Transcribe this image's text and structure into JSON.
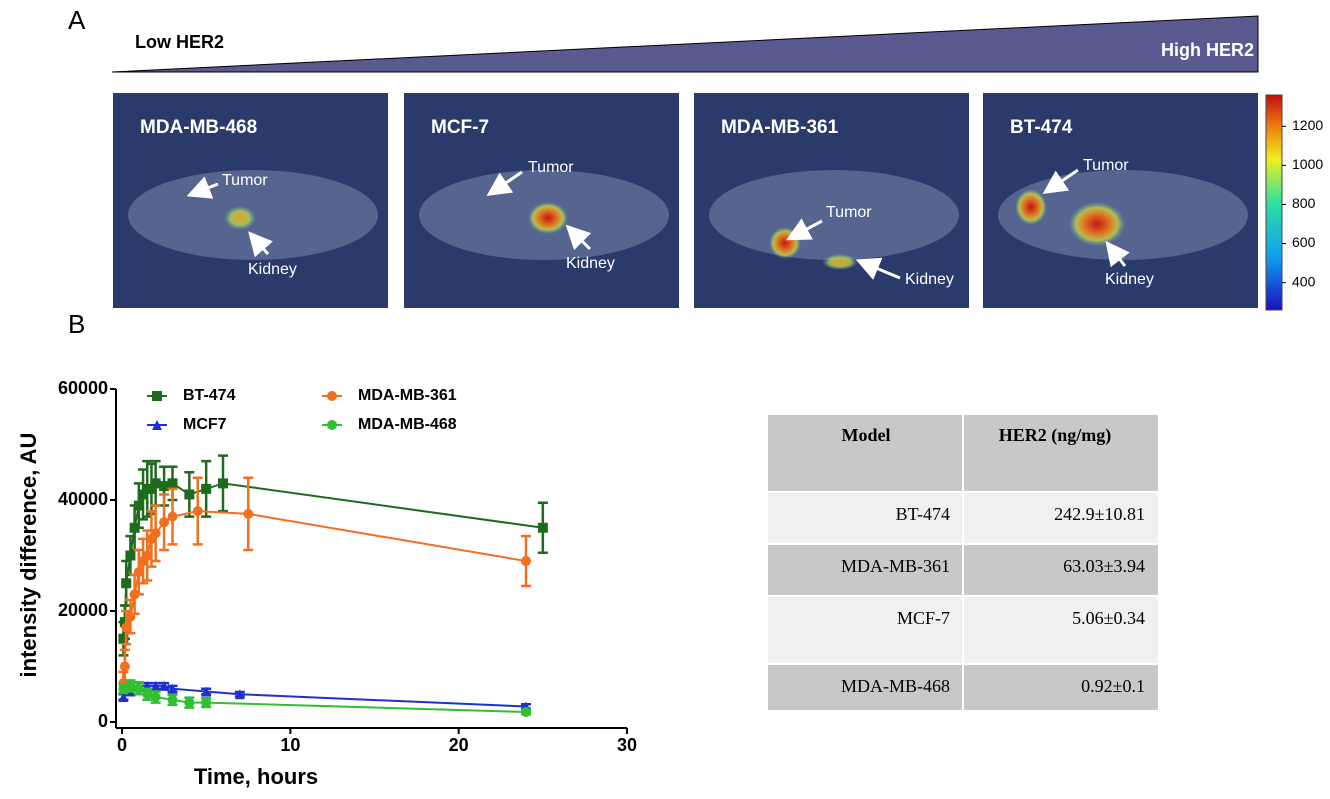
{
  "panel_a": {
    "label": "A",
    "gradient": {
      "low": "Low HER2",
      "high": "High HER2"
    },
    "images": [
      {
        "name": "MDA-MB-468",
        "tumor": "Tumor",
        "kidney": "Kidney"
      },
      {
        "name": "MCF-7",
        "tumor": "Tumor",
        "kidney": "Kidney"
      },
      {
        "name": "MDA-MB-361",
        "tumor": "Tumor",
        "kidney": "Kidney"
      },
      {
        "name": "BT-474",
        "tumor": "Tumor",
        "kidney": "Kidney"
      }
    ],
    "colorbar": {
      "lim": [
        260,
        1360
      ],
      "ticks": [
        400,
        600,
        800,
        1000,
        1200
      ]
    }
  },
  "panel_b": {
    "label": "B"
  },
  "chart_data": {
    "type": "line",
    "xlabel": "Time, hours",
    "ylabel": "intensity difference, AU",
    "xlim": [
      0,
      30
    ],
    "xticks": [
      0,
      10,
      20,
      30
    ],
    "ylim": [
      0,
      60000
    ],
    "yticks": [
      0,
      20000,
      40000,
      60000
    ],
    "series": [
      {
        "name": "BT-474",
        "color": "#1e6b1e",
        "marker": "square",
        "x": [
          0.083,
          0.17,
          0.25,
          0.5,
          0.75,
          1,
          1.25,
          1.5,
          1.75,
          2,
          2.5,
          3,
          4,
          5,
          6,
          25
        ],
        "values": [
          15000,
          18000,
          25000,
          30000,
          35000,
          39000,
          41000,
          42000,
          42000,
          43000,
          42500,
          43000,
          41000,
          42000,
          43000,
          35000
        ],
        "errors": [
          3000,
          3000,
          4000,
          3500,
          4000,
          4000,
          4500,
          5000,
          4500,
          4000,
          3500,
          3000,
          4000,
          5000,
          5000,
          4500
        ]
      },
      {
        "name": "MDA-MB-361",
        "color": "#f07020",
        "marker": "circle",
        "x": [
          0.083,
          0.17,
          0.25,
          0.5,
          0.75,
          1,
          1.25,
          1.5,
          1.75,
          2,
          2.5,
          3,
          4.5,
          7.5,
          24
        ],
        "values": [
          7000,
          10000,
          17000,
          19000,
          23000,
          27000,
          29000,
          30000,
          33000,
          34000,
          36000,
          37000,
          38000,
          37500,
          29000
        ],
        "errors": [
          2000,
          3000,
          3000,
          3000,
          3500,
          4000,
          4000,
          4500,
          5000,
          5000,
          5000,
          5000,
          6000,
          6500,
          4500
        ]
      },
      {
        "name": "MCF7",
        "color": "#2030d0",
        "marker": "triangle",
        "x": [
          0.083,
          0.5,
          1,
          1.5,
          2,
          2.5,
          3,
          5,
          7,
          24
        ],
        "values": [
          4500,
          5500,
          6500,
          6500,
          6500,
          6500,
          6000,
          5500,
          5000,
          2800
        ],
        "errors": [
          500,
          600,
          600,
          500,
          500,
          500,
          500,
          500,
          400,
          400
        ]
      },
      {
        "name": "MDA-MB-468",
        "color": "#30c030",
        "marker": "circle",
        "x": [
          0.083,
          0.5,
          1,
          1.5,
          2,
          3,
          4,
          5,
          24
        ],
        "values": [
          6000,
          6500,
          6000,
          5000,
          4500,
          4000,
          3500,
          3500,
          1800
        ],
        "errors": [
          800,
          1000,
          1000,
          1000,
          1000,
          900,
          900,
          800,
          400
        ]
      }
    ]
  },
  "table": {
    "header": [
      "Model",
      "HER2 (ng/mg)"
    ],
    "rows": [
      [
        "BT-474",
        "242.9±10.81"
      ],
      [
        "MDA-MB-361",
        "63.03±3.94"
      ],
      [
        "MCF-7",
        "5.06±0.34"
      ],
      [
        "MDA-MB-468",
        "0.92±0.1"
      ]
    ]
  }
}
